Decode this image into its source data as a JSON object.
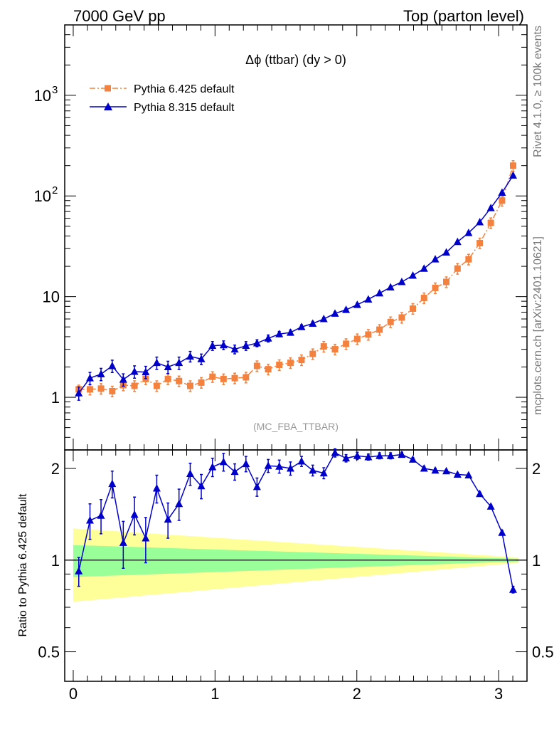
{
  "header": {
    "left": "7000 GeV pp",
    "right": "Top (parton level)"
  },
  "side_labels": {
    "rivet": "Rivet 4.1.0, ≥ 100k events",
    "mcplots": "mcplots.cern.ch [arXiv:2401.10621]"
  },
  "colors": {
    "pythia6": "#f4813d",
    "pythia8": "#0000cc",
    "band_inner": "#99ff99",
    "band_outer": "#ffff99"
  },
  "chart_data": [
    {
      "type": "line",
      "title": "Δϕ (ttbar) (dy > 0)",
      "watermark": "(MC_FBA_TTBAR)",
      "xlabel": "",
      "ylabel": "",
      "yscale": "log",
      "xlim": [
        -0.06,
        3.2
      ],
      "ylim": [
        0.3,
        5000
      ],
      "yticks": [
        {
          "value": 1,
          "label": "1"
        },
        {
          "value": 10,
          "label": "10"
        },
        {
          "value": 100,
          "label": "10",
          "sup": "2"
        },
        {
          "value": 1000,
          "label": "10",
          "sup": "3"
        }
      ],
      "x": [
        0.039,
        0.118,
        0.196,
        0.275,
        0.353,
        0.432,
        0.511,
        0.589,
        0.668,
        0.746,
        0.825,
        0.903,
        0.982,
        1.06,
        1.139,
        1.218,
        1.296,
        1.375,
        1.453,
        1.532,
        1.61,
        1.689,
        1.767,
        1.846,
        1.924,
        2.003,
        2.081,
        2.16,
        2.238,
        2.317,
        2.395,
        2.474,
        2.553,
        2.631,
        2.71,
        2.788,
        2.867,
        2.945,
        3.024,
        3.102
      ],
      "series": [
        {
          "name": "Pythia 6.425 default",
          "marker": "square",
          "values": [
            1.2,
            1.2,
            1.22,
            1.15,
            1.32,
            1.3,
            1.52,
            1.3,
            1.52,
            1.45,
            1.3,
            1.4,
            1.6,
            1.52,
            1.55,
            1.58,
            2.05,
            1.9,
            2.1,
            2.2,
            2.35,
            2.7,
            3.2,
            3.0,
            3.4,
            3.8,
            4.2,
            4.7,
            5.6,
            6.2,
            7.6,
            9.7,
            12.2,
            14.0,
            19.0,
            23.5,
            34.0,
            54.0,
            90.0,
            200.0
          ],
          "errors": [
            0.1,
            0.12,
            0.12,
            0.12,
            0.12,
            0.12,
            0.12,
            0.12,
            0.12,
            0.12,
            0.12,
            0.12,
            0.12,
            0.12,
            0.12,
            0.12,
            0.12,
            0.12,
            0.12,
            0.12,
            0.12,
            0.12,
            0.12,
            0.12,
            0.12,
            0.12,
            0.12,
            0.12,
            0.12,
            0.12,
            0.12,
            0.12,
            0.12,
            0.12,
            0.12,
            0.12,
            0.12,
            0.12,
            0.12,
            0.12
          ]
        },
        {
          "name": "Pythia 8.315 default",
          "marker": "triangle",
          "values": [
            1.1,
            1.55,
            1.7,
            2.05,
            1.5,
            1.8,
            1.78,
            2.2,
            2.0,
            2.2,
            2.55,
            2.4,
            3.25,
            3.3,
            3.0,
            3.25,
            3.45,
            3.85,
            4.25,
            4.4,
            5.0,
            5.4,
            6.0,
            6.8,
            7.4,
            8.3,
            9.4,
            10.8,
            12.4,
            14.0,
            16.2,
            19.0,
            23.5,
            27.5,
            35.0,
            43.0,
            55.0,
            76.0,
            108.0,
            160.0
          ],
          "errors": [
            0.15,
            0.14,
            0.14,
            0.14,
            0.14,
            0.14,
            0.14,
            0.14,
            0.14,
            0.14,
            0.12,
            0.12,
            0.1,
            0.1,
            0.1,
            0.1,
            0.08,
            0.08,
            0.06,
            0.06,
            0.05,
            0.05,
            0.04,
            0.04,
            0.04,
            0.04,
            0.04,
            0.04,
            0.03,
            0.03,
            0.03,
            0.03,
            0.03,
            0.03,
            0.03,
            0.03,
            0.03,
            0.03,
            0.03,
            0.03
          ]
        }
      ],
      "legend": "top-left"
    },
    {
      "type": "line",
      "title": "",
      "xlabel": "",
      "ylabel": "Ratio to Pythia 6.425 default",
      "xlim": [
        -0.06,
        3.2
      ],
      "ylim": [
        0.4,
        2.3
      ],
      "xticks": [
        0,
        1,
        2,
        3
      ],
      "yticks": [
        {
          "value": 0.5,
          "label": "0.5"
        },
        {
          "value": 1,
          "label": "1"
        },
        {
          "value": 2,
          "label": "2"
        }
      ],
      "reference_line": 1,
      "band": {
        "inner_halfwidth_start": 0.12,
        "inner_halfwidth_end": 0.01,
        "outer_halfwidth_start": 0.27,
        "outer_halfwidth_end": 0.02
      },
      "series": [
        {
          "name": "Pythia 8.315 default",
          "values": [
            0.92,
            1.35,
            1.4,
            1.78,
            1.14,
            1.41,
            1.18,
            1.72,
            1.36,
            1.53,
            1.92,
            1.75,
            2.02,
            2.1,
            1.95,
            2.07,
            1.74,
            2.04,
            2.03,
            2.0,
            2.11,
            1.97,
            1.93,
            2.25,
            2.16,
            2.2,
            2.18,
            2.2,
            2.2,
            2.22,
            2.14,
            2.0,
            1.97,
            1.96,
            1.91,
            1.9,
            1.65,
            1.5,
            1.23,
            0.8
          ],
          "errors": [
            0.1,
            0.18,
            0.18,
            0.18,
            0.2,
            0.2,
            0.2,
            0.18,
            0.18,
            0.18,
            0.16,
            0.16,
            0.14,
            0.14,
            0.12,
            0.12,
            0.12,
            0.1,
            0.1,
            0.1,
            0.08,
            0.08,
            0.08,
            0.07,
            0.06,
            0.06,
            0.05,
            0.05,
            0.05,
            0.04,
            0.03,
            0.03,
            0.03,
            0.02,
            0.02,
            0.02,
            0.02,
            0.02,
            0.02,
            0.02
          ]
        }
      ]
    }
  ]
}
